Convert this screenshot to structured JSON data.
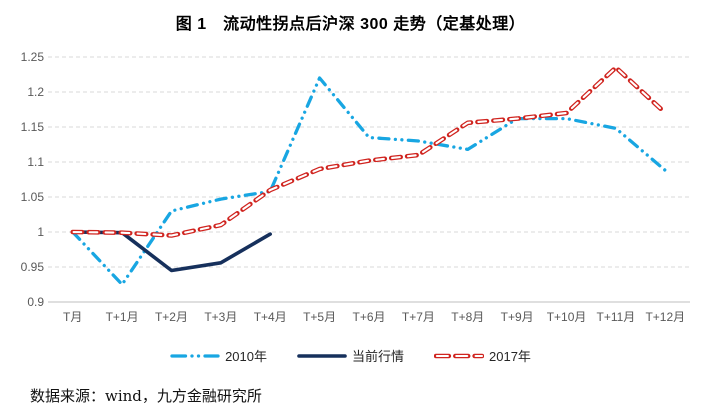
{
  "title": "图 1　流动性拐点后沪深 300 走势（定基处理）",
  "footer": {
    "source_text": "数据来源：wind，九方金融研究所"
  },
  "colors": {
    "grid": "#d9d9d9",
    "axis": "#bfbfbf",
    "tick_label": "#595959",
    "series_2010": "#18a6e2",
    "series_current": "#16305c",
    "series_2017": "#d0241f"
  },
  "chart_data": {
    "type": "line",
    "title": "图 1　流动性拐点后沪深 300 走势（定基处理）",
    "categories": [
      "T月",
      "T+1月",
      "T+2月",
      "T+3月",
      "T+4月",
      "T+5月",
      "T+6月",
      "T+7月",
      "T+8月",
      "T+9月",
      "T+10月",
      "T+11月",
      "T+12月"
    ],
    "series": [
      {
        "name": "2010年",
        "style": "dashdot",
        "color": "#18a6e2",
        "values": [
          1.0,
          0.925,
          1.03,
          1.047,
          1.058,
          1.22,
          1.135,
          1.13,
          1.118,
          1.162,
          1.162,
          1.148,
          1.088
        ]
      },
      {
        "name": "当前行情",
        "style": "solid",
        "color": "#16305c",
        "values": [
          1.0,
          0.999,
          0.945,
          0.956,
          0.997,
          null,
          null,
          null,
          null,
          null,
          null,
          null,
          null
        ]
      },
      {
        "name": "2017年",
        "style": "hollow-dash",
        "color": "#d0241f",
        "values": [
          1.0,
          0.999,
          0.995,
          1.01,
          1.06,
          1.09,
          1.102,
          1.11,
          1.156,
          1.162,
          1.17,
          1.235,
          1.17
        ]
      }
    ],
    "ylim": [
      0.9,
      1.25
    ],
    "yticks": [
      0.9,
      0.95,
      1,
      1.05,
      1.1,
      1.15,
      1.2,
      1.25
    ],
    "ytick_labels": [
      "0.9",
      "0.95",
      "1",
      "1.05",
      "1.1",
      "1.15",
      "1.2",
      "1.25"
    ],
    "xlabel": "",
    "ylabel": "",
    "grid": "horizontal-dashed",
    "legend_position": "bottom"
  }
}
